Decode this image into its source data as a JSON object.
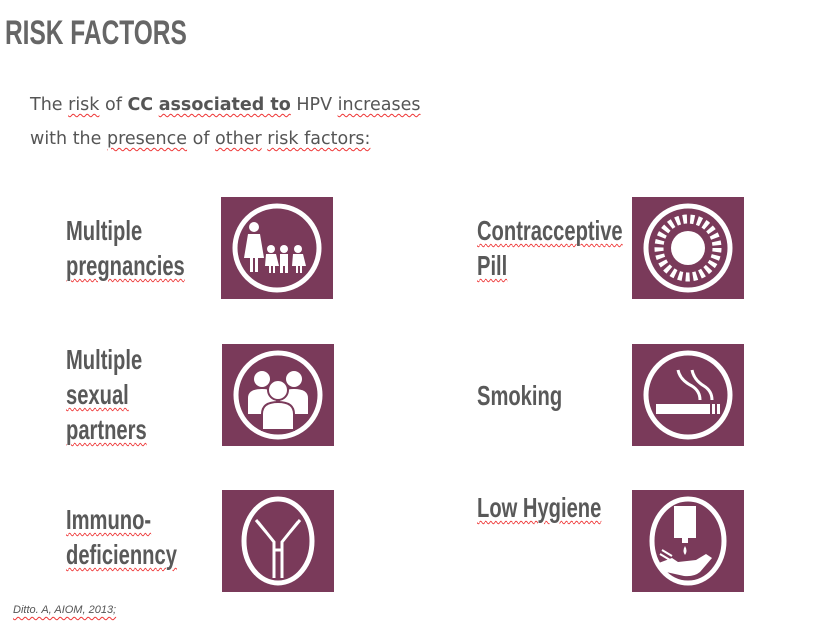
{
  "title": "RISK FACTORS",
  "intro": {
    "p1": "The ",
    "w1": "risk",
    "p2": " of ",
    "b1": "CC",
    "p3": " ",
    "b2": "associated to",
    "p4": " HPV ",
    "w2": "increases",
    "p5": "with the ",
    "w3": "presence",
    "p6": " of ",
    "w4": "other",
    "p7": " ",
    "w5": "risk factors:"
  },
  "factors": [
    {
      "lines": [
        "Multiple",
        "pregnancies"
      ],
      "icon": "family-icon"
    },
    {
      "lines": [
        "Contracceptive",
        "Pill"
      ],
      "icon": "pill-pack-icon"
    },
    {
      "lines": [
        "Multiple",
        "sexual",
        "partners"
      ],
      "icon": "group-icon"
    },
    {
      "lines": [
        "Smoking"
      ],
      "icon": "cigarette-icon"
    },
    {
      "lines": [
        "Immuno-",
        "deficienncy"
      ],
      "icon": "antibody-icon"
    },
    {
      "lines": [
        "Low Hygiene"
      ],
      "icon": "hand-wash-icon"
    }
  ],
  "citation": "Ditto. A, AIOM, 2013;",
  "colors": {
    "icon_bg": "#7a3a5a",
    "text": "#595959"
  }
}
